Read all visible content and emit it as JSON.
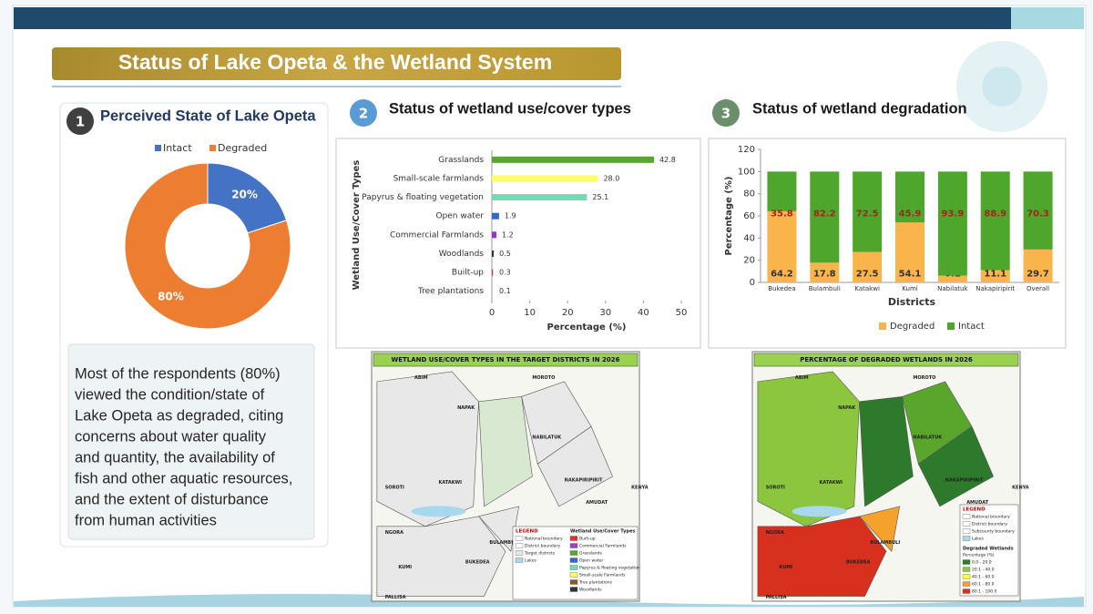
{
  "header": {
    "title": "Status of Lake Opeta & the Wetland System"
  },
  "panels": [
    {
      "number": "1",
      "title": "Perceived State of Lake Opeta"
    },
    {
      "number": "2",
      "title": "Status of wetland use/cover types"
    },
    {
      "number": "3",
      "title": "Status of wetland degradation"
    }
  ],
  "note": {
    "lines": [
      "Most of the respondents (80%)",
      "viewed the condition/state of",
      "Lake Opeta as degraded, citing",
      "concerns about water quality",
      "and quantity, the availability of",
      "fish and other aquatic resources,",
      "and the extent of disturbance",
      "from human activities"
    ]
  },
  "chart_data": [
    {
      "type": "pie",
      "donut": true,
      "categories": [
        "Intact",
        "Degraded"
      ],
      "values": [
        20,
        80
      ],
      "value_labels": [
        "20%",
        "80%"
      ],
      "colors": [
        "#4472c4",
        "#ed7d31"
      ],
      "legend": "top"
    },
    {
      "type": "bar",
      "orientation": "horizontal",
      "categories": [
        "Grasslands",
        "Small-scale farmlands",
        "Papyrus & floating vegetation",
        "Open water",
        "Commercial Farmlands",
        "Woodlands",
        "Built-up",
        "Tree plantations"
      ],
      "values": [
        42.8,
        28.0,
        25.1,
        1.9,
        1.2,
        0.5,
        0.3,
        0.1
      ],
      "value_labels": [
        "42.8",
        "28.0",
        "25.1",
        "1.9",
        "1.2",
        "0.5",
        "0.3",
        "0.1"
      ],
      "colors": [
        "#5aa52c",
        "#ffff66",
        "#6fdcb5",
        "#3366cc",
        "#9933cc",
        "#333333",
        "#cc3366",
        "#999999"
      ],
      "xlim": [
        0,
        50
      ],
      "xticks": [
        0,
        10,
        20,
        30,
        40,
        50
      ],
      "xlabel": "Percentage (%)",
      "ylabel": "Wetland Use/Cover Types"
    },
    {
      "type": "bar",
      "stacked": true,
      "categories": [
        "Bukedea",
        "Bulambuli",
        "Katakwi",
        "Kumi",
        "Nabilatuk",
        "Nakapiripirit",
        "Overall"
      ],
      "series": [
        {
          "name": "Degraded",
          "color": "#f9b54c",
          "values": [
            64.2,
            17.8,
            27.5,
            54.1,
            6.1,
            11.1,
            29.7
          ]
        },
        {
          "name": "Intact",
          "color": "#4ea62c",
          "values": [
            35.8,
            82.2,
            72.5,
            45.9,
            93.9,
            88.9,
            70.3
          ]
        }
      ],
      "ylim": [
        0,
        120
      ],
      "yticks": [
        0,
        20,
        40,
        60,
        80,
        100,
        120
      ],
      "xlabel": "Districts",
      "ylabel": "Percentage (%)",
      "legend": "bottom"
    }
  ],
  "maps": [
    {
      "title": "WETLAND USE/COVER TYPES IN THE TARGET DISTRICTS IN 2026",
      "places": [
        "ABIM",
        "MOROTO",
        "NAPAK",
        "NABILATUK",
        "KATAKWI",
        "NAKAPIRIPIRIT",
        "AMUDAT",
        "KENYA",
        "KUMI",
        "BUKEDEA",
        "BULAMBULI",
        "SOROTI",
        "NGORA",
        "PALLISA"
      ],
      "legend": {
        "title": "LEGEND",
        "items": [
          {
            "label": "National boundary",
            "color": "#ffffff"
          },
          {
            "label": "District boundary",
            "color": "#ffffff"
          },
          {
            "label": "Target districts",
            "color": "#e6e6e6"
          },
          {
            "label": "Lakes",
            "color": "#a8d8ef"
          }
        ],
        "types_title": "Wetland Use/Cover Types",
        "types": [
          {
            "label": "Built-up",
            "color": "#e03030"
          },
          {
            "label": "Commercial Farmlands",
            "color": "#a040c0"
          },
          {
            "label": "Grasslands",
            "color": "#5aa52c"
          },
          {
            "label": "Open water",
            "color": "#3366cc"
          },
          {
            "label": "Papyrus & floating vegetation",
            "color": "#6fdcb5"
          },
          {
            "label": "Small-scale Farmlands",
            "color": "#ffff66"
          },
          {
            "label": "Tree plantations",
            "color": "#8b5a2b"
          },
          {
            "label": "Woodlands",
            "color": "#333333"
          }
        ]
      }
    },
    {
      "title": "PERCENTAGE OF DEGRADED WETLANDS IN 2026",
      "places": [
        "ABIM",
        "MOROTO",
        "NAPAK",
        "NABILATUK",
        "KATAKWI",
        "NAKAPIRIPIRIT",
        "AMUDAT",
        "KENYA",
        "KUMI",
        "BUKEDEA",
        "BULAMBULI",
        "SOROTI",
        "NGORA",
        "PALLISA"
      ],
      "legend": {
        "title": "LEGEND",
        "items": [
          {
            "label": "National boundary",
            "color": "#ffffff"
          },
          {
            "label": "District boundary",
            "color": "#ffffff"
          },
          {
            "label": "Subcounty boundary",
            "color": "#ffffff"
          },
          {
            "label": "Lakes",
            "color": "#a8d8ef"
          }
        ],
        "types_title": "Degraded Wetlands",
        "subtitle": "Percentage (%)",
        "types": [
          {
            "label": "0.0 - 20.0",
            "color": "#2d7a2d"
          },
          {
            "label": "20.1 - 40.0",
            "color": "#8cc63f"
          },
          {
            "label": "40.1 - 60.0",
            "color": "#ffff33"
          },
          {
            "label": "60.1 - 80.0",
            "color": "#f4a22c"
          },
          {
            "label": "80.1 - 100.0",
            "color": "#d7301f"
          }
        ]
      }
    }
  ]
}
